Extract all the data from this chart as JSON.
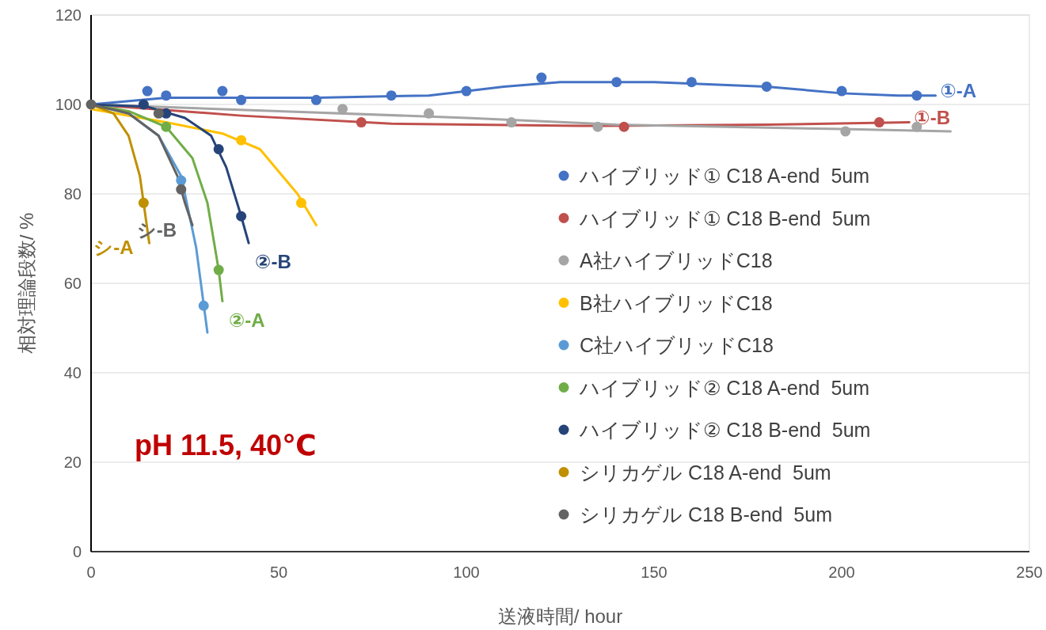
{
  "chart_data": {
    "type": "scatter",
    "xlabel": "送液時間/ hour",
    "ylabel": "相対理論段数/ %",
    "xlim": [
      0,
      250
    ],
    "xticks": [
      0,
      50,
      100,
      150,
      200,
      250
    ],
    "ylim": [
      0,
      120
    ],
    "yticks": [
      0,
      20,
      40,
      60,
      80,
      100,
      120
    ],
    "grid": "y",
    "legend": "right",
    "marker": "circle",
    "annotations": [
      "pH 11.5, 40℃"
    ],
    "series": [
      {
        "name": "ハイブリッド① C18 A-end  5um",
        "color": "#4472c4",
        "x": [
          15,
          20,
          35,
          40,
          60,
          80,
          100,
          120,
          140,
          160,
          180,
          200,
          220
        ],
        "values": [
          103,
          102,
          103,
          101,
          101,
          102,
          103,
          106,
          105,
          105,
          104,
          103,
          102
        ]
      },
      {
        "name": "ハイブリッド① C18 B-end  5um",
        "color": "#c0504d",
        "x": [
          72,
          142,
          210
        ],
        "values": [
          96,
          95,
          96
        ]
      },
      {
        "name": "A社ハイブリッドC18",
        "color": "#a5a5a5",
        "x": [
          67,
          90,
          112,
          135,
          201,
          220
        ],
        "values": [
          99,
          98,
          96,
          95,
          94,
          95
        ]
      },
      {
        "name": "B社ハイブリッドC18",
        "color": "#ffc000",
        "x": [
          40,
          56
        ],
        "values": [
          92,
          78
        ]
      },
      {
        "name": "C社ハイブリッドC18",
        "color": "#5b9bd5",
        "x": [
          24,
          30
        ],
        "values": [
          83,
          55
        ]
      },
      {
        "name": "ハイブリッド② C18 A-end  5um",
        "color": "#70ad47",
        "x": [
          20,
          34
        ],
        "values": [
          95,
          63
        ]
      },
      {
        "name": "ハイブリッド② C18 B-end  5um",
        "color": "#264478",
        "x": [
          14,
          20,
          34,
          40
        ],
        "values": [
          100,
          98,
          90,
          75
        ]
      },
      {
        "name": "シリカゲル C18 A-end  5um",
        "color": "#bf9000",
        "x": [
          14
        ],
        "values": [
          78
        ]
      },
      {
        "name": "シリカゲル C18 B-end  5um",
        "color": "#636363",
        "x": [
          0,
          18,
          24
        ],
        "values": [
          100,
          98,
          81
        ]
      },
      {
        "type": "line",
        "marker": "none",
        "name": "①-A",
        "color": "#4472c4",
        "x": [
          0,
          20,
          60,
          90,
          110,
          125,
          150,
          180,
          200,
          215,
          225
        ],
        "values": [
          100,
          101.5,
          101.5,
          102,
          104,
          105,
          105,
          104,
          102.5,
          102,
          102
        ]
      },
      {
        "type": "line",
        "marker": "none",
        "name": "①-B",
        "color": "#c0504d",
        "x": [
          0,
          40,
          80,
          130,
          180,
          218
        ],
        "values": [
          100,
          97.5,
          95.7,
          95.2,
          95.5,
          96
        ]
      },
      {
        "type": "line",
        "marker": "none",
        "color": "#a5a5a5",
        "x": [
          0,
          50,
          100,
          140,
          200,
          229
        ],
        "values": [
          100,
          98.5,
          97,
          95.5,
          94.5,
          94
        ]
      },
      {
        "type": "line",
        "marker": "none",
        "color": "#ffc000",
        "x": [
          0,
          20,
          35,
          45,
          55,
          60
        ],
        "values": [
          99,
          96,
          93.5,
          90,
          80,
          73
        ]
      },
      {
        "type": "line",
        "marker": "none",
        "color": "#5b9bd5",
        "x": [
          0,
          10,
          18,
          24,
          28,
          31
        ],
        "values": [
          100,
          98,
          93,
          84,
          68,
          49
        ]
      },
      {
        "type": "line",
        "marker": "none",
        "name": "②-A",
        "color": "#70ad47",
        "x": [
          0,
          10,
          20,
          27,
          31,
          34,
          35
        ],
        "values": [
          100,
          98.5,
          95,
          88,
          78,
          63,
          56
        ]
      },
      {
        "type": "line",
        "marker": "none",
        "name": "②-B",
        "color": "#264478",
        "x": [
          0,
          15,
          25,
          32,
          36,
          40,
          42
        ],
        "values": [
          100,
          99.5,
          97,
          93,
          86,
          75,
          69
        ]
      },
      {
        "type": "line",
        "marker": "none",
        "name": "シ-A",
        "color": "#bf9000",
        "x": [
          0,
          6,
          10,
          13,
          14,
          15.5
        ],
        "values": [
          100,
          98,
          93,
          84,
          78,
          69
        ]
      },
      {
        "type": "line",
        "marker": "none",
        "name": "シ-B",
        "color": "#636363",
        "x": [
          0,
          10,
          18,
          23,
          25,
          27
        ],
        "values": [
          100,
          98,
          93,
          84,
          78,
          73
        ]
      }
    ]
  }
}
